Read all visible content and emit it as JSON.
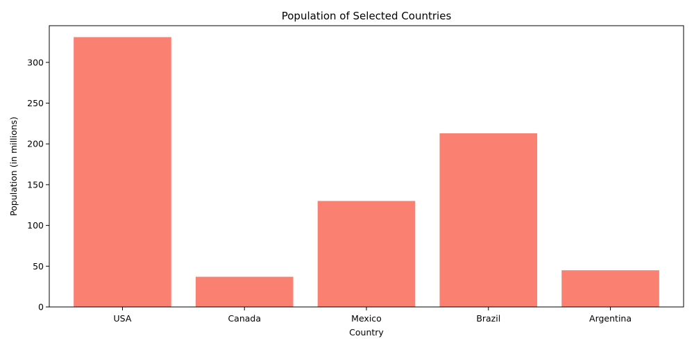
{
  "chart_data": {
    "type": "bar",
    "title": "Population of Selected Countries",
    "xlabel": "Country",
    "ylabel": "Population (in millions)",
    "categories": [
      "USA",
      "Canada",
      "Mexico",
      "Brazil",
      "Argentina"
    ],
    "values": [
      331,
      37,
      130,
      213,
      45
    ],
    "ylim": [
      0,
      345
    ],
    "yticks": [
      0,
      50,
      100,
      150,
      200,
      250,
      300
    ],
    "bar_color": "#fa8072",
    "grid": false,
    "legend": "none"
  }
}
